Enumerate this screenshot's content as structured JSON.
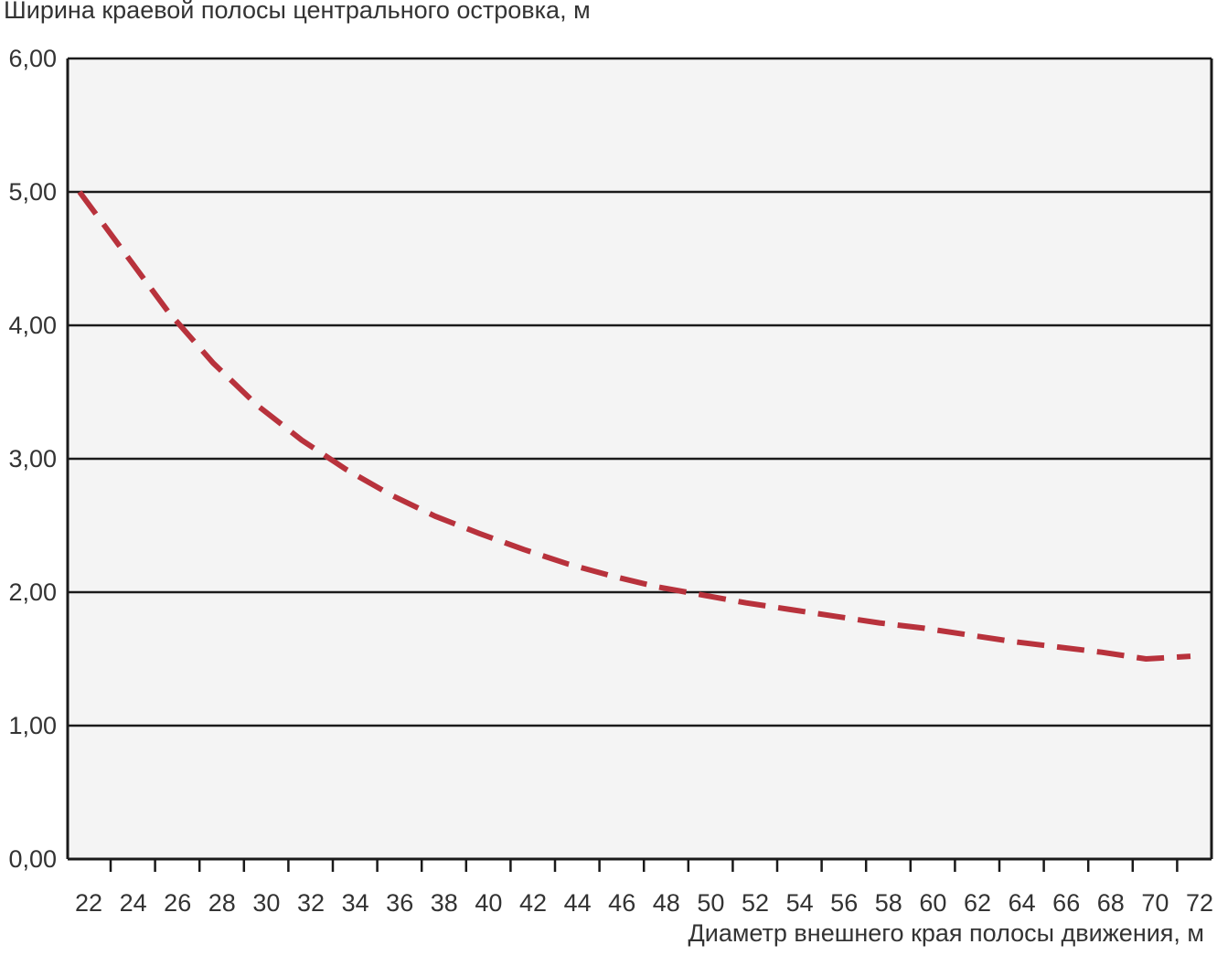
{
  "chart_data": {
    "type": "line",
    "title": "",
    "ylabel": "Ширина краевой полосы центрального островка, м",
    "xlabel": "Диаметр внешнего края полосы движения, м",
    "x_ticks": [
      "22",
      "24",
      "26",
      "28",
      "30",
      "32",
      "34",
      "36",
      "38",
      "40",
      "42",
      "44",
      "46",
      "48",
      "50",
      "52",
      "54",
      "56",
      "58",
      "60",
      "62",
      "64",
      "66",
      "68",
      "70",
      "72"
    ],
    "y_ticks": [
      "0,00",
      "1,00",
      "2,00",
      "3,00",
      "4,00",
      "5,00",
      "6,00"
    ],
    "xlim": [
      21,
      73
    ],
    "ylim": [
      0,
      6
    ],
    "grid": "horizontal",
    "series": [
      {
        "color": "#b8323c",
        "line_style": "dashed",
        "x": [
          22,
          24,
          26,
          28,
          30,
          32,
          34,
          36,
          38,
          40,
          42,
          44,
          46,
          48,
          50,
          52,
          54,
          56,
          58,
          60,
          62,
          64,
          66,
          68,
          70,
          72
        ],
        "y": [
          5.0,
          4.55,
          4.1,
          3.72,
          3.4,
          3.14,
          2.92,
          2.73,
          2.57,
          2.44,
          2.32,
          2.21,
          2.12,
          2.04,
          1.98,
          1.92,
          1.87,
          1.82,
          1.77,
          1.73,
          1.68,
          1.63,
          1.59,
          1.55,
          1.5,
          1.52
        ]
      }
    ]
  }
}
